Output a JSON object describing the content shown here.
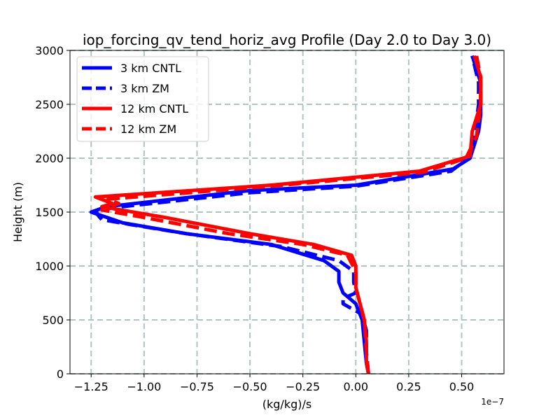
{
  "chart_data": {
    "type": "line",
    "title": "iop_forcing_qv_tend_horiz_avg Profile (Day 2.0 to Day 3.0)",
    "xlabel": "(kg/kg)/s",
    "ylabel": "Height (m)",
    "x_offset_label": "1e−7",
    "xlim": [
      -1.35,
      0.7
    ],
    "ylim": [
      0,
      3000
    ],
    "grid": true,
    "legend_position": "top-left",
    "x_ticks": [
      -1.25,
      -1.0,
      -0.75,
      -0.5,
      -0.25,
      0.0,
      0.25,
      0.5
    ],
    "x_tick_labels": [
      "−1.25",
      "−1.00",
      "−0.75",
      "−0.50",
      "−0.25",
      "0.00",
      "0.25",
      "0.50"
    ],
    "y_ticks": [
      0,
      500,
      1000,
      1500,
      2000,
      2500,
      3000
    ],
    "y_tick_labels": [
      "0",
      "500",
      "1000",
      "1500",
      "2000",
      "2500",
      "3000"
    ],
    "series": [
      {
        "name": "3 km CNTL",
        "color": "#0000ff",
        "dash": "solid",
        "points": [
          [
            0.06,
            0
          ],
          [
            0.05,
            100
          ],
          [
            0.04,
            300
          ],
          [
            0.03,
            500
          ],
          [
            0.0,
            650
          ],
          [
            -0.06,
            750
          ],
          [
            -0.08,
            850
          ],
          [
            -0.08,
            950
          ],
          [
            -0.15,
            1050
          ],
          [
            -0.4,
            1200
          ],
          [
            -0.8,
            1300
          ],
          [
            -1.1,
            1400
          ],
          [
            -1.25,
            1500
          ],
          [
            -1.18,
            1550
          ],
          [
            -0.5,
            1700
          ],
          [
            0.0,
            1750
          ],
          [
            0.46,
            1900
          ],
          [
            0.54,
            2000
          ],
          [
            0.58,
            2250
          ],
          [
            0.59,
            2400
          ],
          [
            0.59,
            2700
          ],
          [
            0.55,
            2950
          ]
        ]
      },
      {
        "name": "3 km ZM",
        "color": "#0000ff",
        "dash": "dashed",
        "points": [
          [
            0.06,
            0
          ],
          [
            0.05,
            200
          ],
          [
            0.05,
            400
          ],
          [
            0.03,
            550
          ],
          [
            -0.06,
            650
          ],
          [
            -0.06,
            700
          ],
          [
            0.0,
            750
          ],
          [
            -0.01,
            850
          ],
          [
            -0.01,
            950
          ],
          [
            -0.08,
            1050
          ],
          [
            -0.35,
            1180
          ],
          [
            -0.8,
            1300
          ],
          [
            -1.05,
            1380
          ],
          [
            -1.2,
            1430
          ],
          [
            -1.23,
            1500
          ],
          [
            -1.15,
            1540
          ],
          [
            -0.5,
            1680
          ],
          [
            0.0,
            1740
          ],
          [
            0.45,
            1880
          ],
          [
            0.53,
            2000
          ],
          [
            0.56,
            2200
          ],
          [
            0.58,
            2500
          ],
          [
            0.58,
            2700
          ],
          [
            0.55,
            2950
          ]
        ]
      },
      {
        "name": "12 km CNTL",
        "color": "#ff0000",
        "dash": "solid",
        "points": [
          [
            0.06,
            0
          ],
          [
            0.05,
            100
          ],
          [
            0.05,
            300
          ],
          [
            0.04,
            500
          ],
          [
            0.0,
            800
          ],
          [
            0.0,
            1000
          ],
          [
            -0.02,
            1100
          ],
          [
            -0.2,
            1200
          ],
          [
            -0.5,
            1300
          ],
          [
            -0.9,
            1450
          ],
          [
            -1.2,
            1550
          ],
          [
            -1.15,
            1580
          ],
          [
            -1.23,
            1640
          ],
          [
            -0.4,
            1750
          ],
          [
            0.3,
            1880
          ],
          [
            0.54,
            2020
          ],
          [
            0.55,
            2250
          ],
          [
            0.59,
            2500
          ],
          [
            0.59,
            2750
          ],
          [
            0.56,
            2950
          ]
        ]
      },
      {
        "name": "12 km ZM",
        "color": "#ff0000",
        "dash": "dashed",
        "points": [
          [
            0.06,
            0
          ],
          [
            0.05,
            200
          ],
          [
            0.04,
            500
          ],
          [
            0.0,
            800
          ],
          [
            0.0,
            950
          ],
          [
            -0.04,
            1100
          ],
          [
            -0.25,
            1200
          ],
          [
            -0.6,
            1300
          ],
          [
            -1.0,
            1450
          ],
          [
            -1.2,
            1520
          ],
          [
            -1.12,
            1580
          ],
          [
            -1.17,
            1620
          ],
          [
            -0.4,
            1740
          ],
          [
            0.32,
            1870
          ],
          [
            0.52,
            2000
          ],
          [
            0.57,
            2200
          ],
          [
            0.59,
            2500
          ],
          [
            0.59,
            2750
          ],
          [
            0.57,
            2950
          ]
        ]
      }
    ]
  }
}
